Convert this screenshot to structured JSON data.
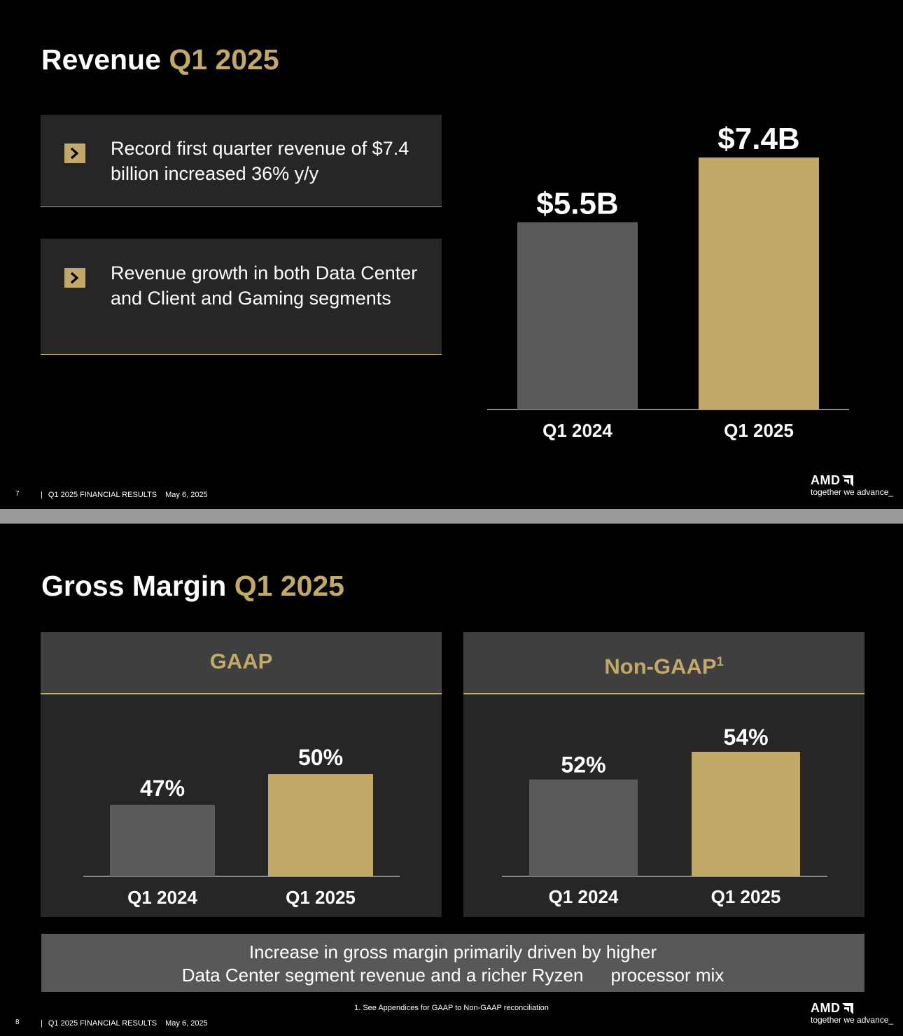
{
  "slide1": {
    "title": "Revenue",
    "title_accent": "Q1 2025",
    "bullets": [
      "Record first quarter revenue of $7.4 billion increased 36% y/y",
      "Revenue growth in both Data Center and Client and Gaming segments"
    ],
    "footer_page": "7",
    "footer_sep": "|",
    "footer_text": "Q1 2025 FINANCIAL RESULTS",
    "footer_date": "May 6, 2025",
    "logo_text": "AMD",
    "logo_tag": "together we advance_"
  },
  "slide2": {
    "title": "Gross Margin",
    "title_accent": "Q1 2025",
    "gaap_heading": "GAAP",
    "nongaap_heading": "Non-GAAP",
    "nongaap_sup": "1",
    "note_line1": "Increase in gross margin primarily driven by higher",
    "note_line2": "Data Center segment revenue and a richer Ryzen   processor mix",
    "footnote": "1. See Appendices for GAAP to Non-GAAP reconciliation",
    "footer_page": "8",
    "footer_sep": "|",
    "footer_text": "Q1 2025 FINANCIAL RESULTS",
    "footer_date": "May 6, 2025",
    "logo_text": "AMD",
    "logo_tag": "together we advance_"
  },
  "colors": {
    "prior": "#5a5a5a",
    "current": "#c2a969",
    "accent": "#c2a969",
    "axis": "#8a8a8a"
  },
  "chart_data": [
    {
      "type": "bar",
      "title": "Revenue Q1 2025",
      "categories": [
        "Q1 2024",
        "Q1 2025"
      ],
      "values": [
        5.5,
        7.4
      ],
      "data_labels": [
        "$5.5B",
        "$7.4B"
      ],
      "unit": "$B",
      "grid": false
    },
    {
      "type": "bar",
      "title": "GAAP",
      "categories": [
        "Q1 2024",
        "Q1 2025"
      ],
      "values": [
        47,
        50
      ],
      "data_labels": [
        "47%",
        "50%"
      ],
      "unit": "%",
      "grid": false
    },
    {
      "type": "bar",
      "title": "Non-GAAP",
      "categories": [
        "Q1 2024",
        "Q1 2025"
      ],
      "values": [
        52,
        54
      ],
      "data_labels": [
        "52%",
        "54%"
      ],
      "unit": "%",
      "grid": false
    }
  ]
}
